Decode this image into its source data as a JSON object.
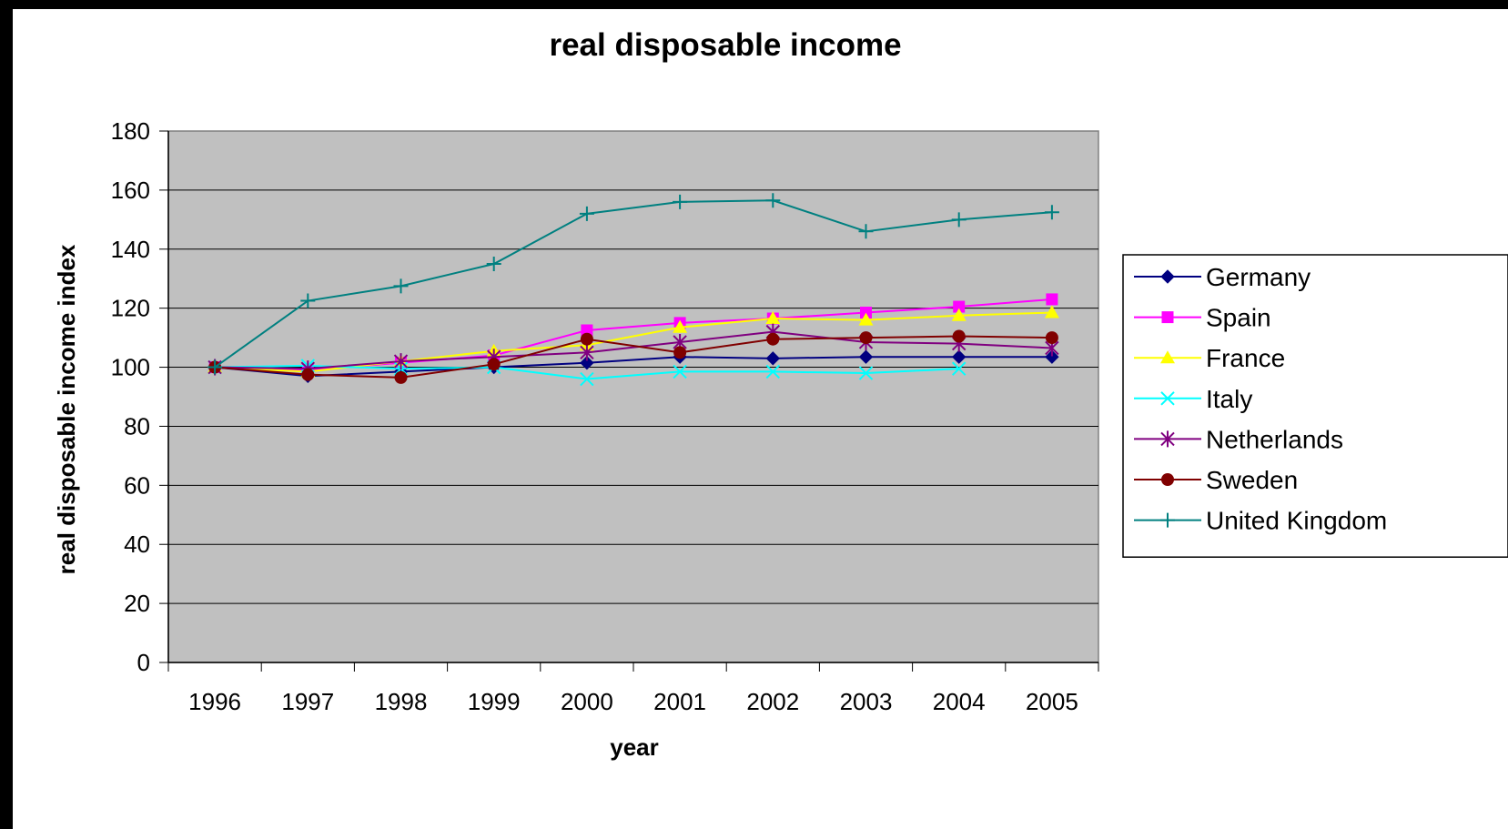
{
  "chart_data": {
    "type": "line",
    "title": "real disposable income",
    "xlabel": "year",
    "ylabel": "real disposable income index",
    "categories": [
      "1996",
      "1997",
      "1998",
      "1999",
      "2000",
      "2001",
      "2002",
      "2003",
      "2004",
      "2005"
    ],
    "ylim": [
      0,
      180
    ],
    "yticks": [
      0,
      20,
      40,
      60,
      80,
      100,
      120,
      140,
      160,
      180
    ],
    "grid": true,
    "plot_background": "#c0c0c0",
    "legend_position": "right",
    "series": [
      {
        "name": "Germany",
        "color": "#000080",
        "marker": "diamond",
        "values": [
          100,
          97,
          98.5,
          100,
          101.5,
          103.5,
          103,
          103.5,
          103.5,
          103.5
        ]
      },
      {
        "name": "Spain",
        "color": "#ff00ff",
        "marker": "square",
        "values": [
          100,
          99,
          101.5,
          104,
          112.5,
          115,
          116.5,
          118.5,
          120.5,
          123
        ]
      },
      {
        "name": "France",
        "color": "#ffff00",
        "marker": "triangle",
        "values": [
          100,
          98.5,
          102,
          105.5,
          107.5,
          113.5,
          116.5,
          116,
          117.5,
          118.5
        ]
      },
      {
        "name": "Italy",
        "color": "#00ffff",
        "marker": "x",
        "values": [
          100,
          100.5,
          99.5,
          100,
          96,
          98.5,
          98.5,
          98,
          99.5,
          null
        ]
      },
      {
        "name": "Netherlands",
        "color": "#800080",
        "marker": "star",
        "values": [
          100,
          99.5,
          102,
          103.5,
          105,
          108.5,
          112,
          108.5,
          108,
          106.5
        ]
      },
      {
        "name": "Sweden",
        "color": "#800000",
        "marker": "circle",
        "values": [
          100,
          97.5,
          96.5,
          101,
          109.5,
          105,
          109.5,
          110,
          110.5,
          110
        ]
      },
      {
        "name": "United Kingdom",
        "color": "#008080",
        "marker": "plus",
        "values": [
          100,
          122.5,
          127.5,
          135,
          152,
          156,
          156.5,
          146,
          150,
          152.5
        ]
      }
    ]
  }
}
